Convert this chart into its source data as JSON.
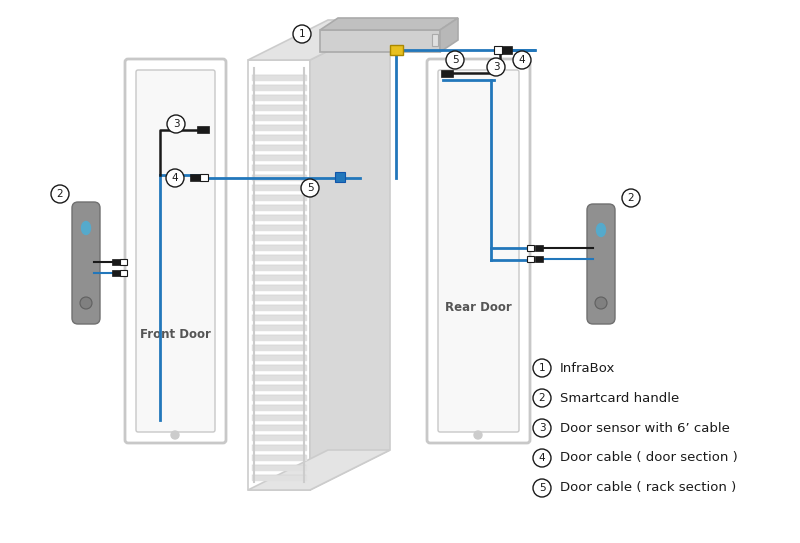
{
  "bg_color": "#ffffff",
  "blue": "#2277bb",
  "black": "#1a1a1a",
  "lgray": "#cccccc",
  "mgray": "#aaaaaa",
  "dgray": "#888888",
  "rack_face": "#f0f0f0",
  "rack_side": "#d8d8d8",
  "rack_top": "#e4e4e4",
  "door_outer": "#c8c8c8",
  "door_inner": "#e8e8e8",
  "handle_color": "#909090",
  "handle_btn": "#44aacc",
  "yellow": "#e8c020",
  "front_door_label": "Front Door",
  "rear_door_label": "Rear Door",
  "legend_items": [
    {
      "num": "1",
      "label": "InfraBox"
    },
    {
      "num": "2",
      "label": "Smartcard handle"
    },
    {
      "num": "3",
      "label": "Door sensor with 6’ cable"
    },
    {
      "num": "4",
      "label": "Door cable ( door section )"
    },
    {
      "num": "5",
      "label": "Door cable ( rack section )"
    }
  ]
}
